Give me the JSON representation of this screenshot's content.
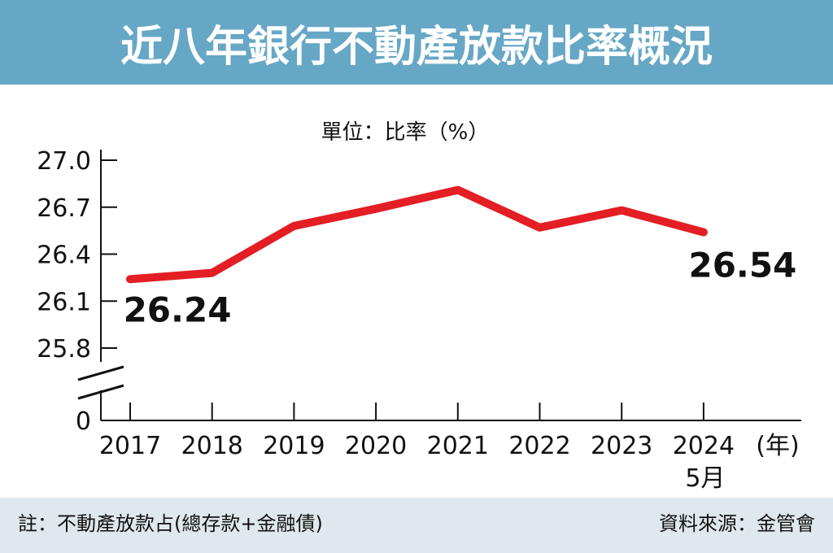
{
  "colors": {
    "header_bg": "#66a7c5",
    "header_text": "#ffffff",
    "footer_bg": "#dfe8ed",
    "line": "#e31e24",
    "text": "#111111"
  },
  "chart_data": {
    "type": "line",
    "title": "近八年銀行不動產放款比率概況",
    "unit_label": "單位：比率（%）",
    "categories": [
      "2017",
      "2018",
      "2019",
      "2020",
      "2021",
      "2022",
      "2023",
      "2024"
    ],
    "category_sublabels": [
      "",
      "",
      "",
      "",
      "",
      "",
      "",
      "5月"
    ],
    "x_unit": "(年)",
    "series": [
      {
        "name": "不動產放款比率",
        "values": [
          26.24,
          26.28,
          26.58,
          26.69,
          26.81,
          26.57,
          26.68,
          26.54
        ]
      }
    ],
    "y_ticks": [
      "27.0",
      "26.7",
      "26.4",
      "26.1",
      "25.8",
      "0"
    ],
    "y_tick_values": [
      27.0,
      26.7,
      26.4,
      26.1,
      25.8
    ],
    "ylim": [
      25.8,
      27.0
    ],
    "axis_break": true,
    "annotations": [
      {
        "index": 0,
        "text": "26.24"
      },
      {
        "index": 7,
        "text": "26.54"
      }
    ],
    "note": "註：不動產放款占(總存款+金融債)",
    "source": "資料來源：金管會"
  }
}
